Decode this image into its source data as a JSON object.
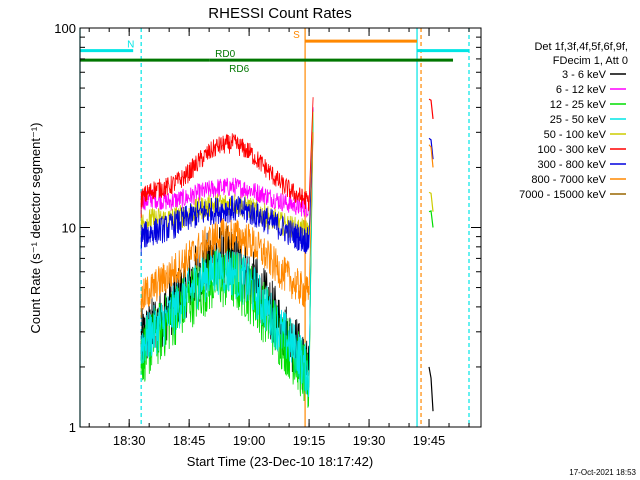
{
  "chart_data": {
    "type": "line",
    "title": "RHESSI Count Rates",
    "xlabel": "Start Time (23-Dec-10 18:17:42)",
    "ylabel": "Count Rate (s⁻¹ detector segment⁻¹)",
    "yscale": "log",
    "ylim": [
      1,
      100
    ],
    "xlim": [
      "18:17:42",
      "19:58:00"
    ],
    "x_ticks": [
      "18:30",
      "18:45",
      "19:00",
      "19:15",
      "19:30",
      "19:45"
    ],
    "y_ticks": [
      "1",
      "10",
      "100"
    ],
    "grid": false,
    "legend_position": "top-right",
    "legend_header": [
      "Det 1f,3f,4f,5f,6f,9f,",
      "FDecim 1, Att 0"
    ],
    "series": [
      {
        "name": "3 - 6 keV",
        "color": "#000000",
        "x": [
          "18:33",
          "18:36",
          "18:40",
          "18:44",
          "18:48",
          "18:52",
          "18:56",
          "19:00",
          "19:04",
          "19:08",
          "19:12",
          "19:15",
          "19:16"
        ],
        "values": [
          2.7,
          3.2,
          4.0,
          5.0,
          6.2,
          7.3,
          7.0,
          5.7,
          4.3,
          3.2,
          2.5,
          1.8,
          40
        ]
      },
      {
        "name": "6 - 12 keV",
        "color": "#ff00ff",
        "x": [
          "18:33",
          "18:36",
          "18:40",
          "18:44",
          "18:48",
          "18:52",
          "18:56",
          "19:00",
          "19:04",
          "19:08",
          "19:12",
          "19:15",
          "19:16"
        ],
        "values": [
          13.5,
          14.0,
          13.5,
          14.0,
          15.0,
          15.8,
          16.0,
          15.5,
          14.5,
          13.5,
          12.8,
          12.5,
          40
        ]
      },
      {
        "name": "12 - 25 keV",
        "color": "#00dd00",
        "x": [
          "18:33",
          "18:36",
          "18:40",
          "18:44",
          "18:48",
          "18:52",
          "18:56",
          "19:00",
          "19:04",
          "19:08",
          "19:12",
          "19:15",
          "19:16"
        ],
        "values": [
          2.3,
          2.7,
          3.4,
          4.2,
          5.0,
          5.6,
          5.5,
          4.8,
          3.7,
          2.8,
          2.2,
          1.6,
          35
        ]
      },
      {
        "name": "25 - 50 keV",
        "color": "#00e5e5",
        "x": [
          "18:33",
          "18:36",
          "18:40",
          "18:44",
          "18:48",
          "18:52",
          "18:56",
          "19:00",
          "19:04",
          "19:08",
          "19:12",
          "19:15",
          "19:16"
        ],
        "values": [
          2.6,
          3.0,
          3.6,
          4.5,
          5.5,
          6.2,
          6.0,
          5.2,
          4.0,
          3.0,
          2.4,
          1.8,
          38
        ]
      },
      {
        "name": "50 - 100 keV",
        "color": "#cccc00",
        "x": [
          "18:33",
          "18:36",
          "18:40",
          "18:44",
          "18:48",
          "18:52",
          "18:56",
          "19:00",
          "19:04",
          "19:08",
          "19:12",
          "19:15",
          "19:16"
        ],
        "values": [
          10.5,
          11.0,
          11.0,
          11.5,
          12.5,
          13.0,
          13.2,
          12.5,
          11.5,
          10.5,
          9.8,
          9.5,
          38
        ]
      },
      {
        "name": "100 - 300 keV",
        "color": "#ff0000",
        "x": [
          "18:33",
          "18:36",
          "18:40",
          "18:44",
          "18:48",
          "18:52",
          "18:56",
          "19:00",
          "19:04",
          "19:08",
          "19:12",
          "19:15",
          "19:16"
        ],
        "values": [
          14.0,
          15.5,
          16.0,
          18.0,
          22.0,
          25.5,
          26.5,
          24.0,
          20.0,
          16.5,
          14.5,
          13.5,
          45
        ]
      },
      {
        "name": "300 - 800 keV",
        "color": "#0000dd",
        "x": [
          "18:33",
          "18:36",
          "18:40",
          "18:44",
          "18:48",
          "18:52",
          "18:56",
          "19:00",
          "19:04",
          "19:08",
          "19:12",
          "19:15",
          "19:16"
        ],
        "values": [
          9.0,
          9.5,
          10.0,
          11.0,
          11.8,
          12.2,
          12.4,
          12.0,
          11.0,
          10.0,
          9.0,
          8.5,
          30
        ]
      },
      {
        "name": "800 - 7000 keV",
        "color": "#ff8800",
        "x": [
          "18:33",
          "18:36",
          "18:40",
          "18:44",
          "18:48",
          "18:52",
          "18:56",
          "19:00",
          "19:04",
          "19:08",
          "19:12",
          "19:15",
          "19:16"
        ],
        "values": [
          4.4,
          5.0,
          5.8,
          6.8,
          8.0,
          9.0,
          9.2,
          8.6,
          7.3,
          6.0,
          5.1,
          4.6,
          30
        ]
      },
      {
        "name": "7000 - 15000 keV",
        "color": "#996600",
        "x": [
          "18:33",
          "19:16"
        ],
        "values": [
          1.0,
          1.0
        ]
      }
    ],
    "annotations": [
      {
        "label": "N",
        "color": "#00e5e5",
        "x_start": "18:17:42",
        "x_end": "18:31",
        "y_value": 77
      },
      {
        "label": "",
        "color": "#00e5e5",
        "x_start": "19:42",
        "x_end": "19:55",
        "y_value": 77
      },
      {
        "label": "S",
        "color": "#ff8800",
        "x_start": "19:14",
        "x_end": "19:42",
        "y_value": 86
      },
      {
        "label": "RD0",
        "color": "#007700",
        "x_start": "18:17:42",
        "x_end": "18:50",
        "y_value": 69
      },
      {
        "label": "RD6",
        "color": "#007700",
        "x_start": "18:50",
        "x_end": "19:51",
        "y_value": 69
      }
    ],
    "vertical_markers": [
      {
        "x": "18:17:42",
        "color": "#00e5e5",
        "style": "solid"
      },
      {
        "x": "18:33",
        "color": "#00e5e5",
        "style": "dashed"
      },
      {
        "x": "19:14",
        "color": "#ff8800",
        "style": "solid"
      },
      {
        "x": "19:42",
        "color": "#00e5e5",
        "style": "solid"
      },
      {
        "x": "19:43",
        "color": "#ff8800",
        "style": "dashed"
      },
      {
        "x": "19:55",
        "color": "#00e5e5",
        "style": "dashed"
      }
    ],
    "late_segment": {
      "x": [
        "19:45",
        "19:46"
      ],
      "series_values": {
        "100 - 300 keV": [
          44,
          35
        ],
        "300 - 800 keV": [
          28,
          22
        ],
        "800 - 7000 keV": [
          26,
          20
        ],
        "50 - 100 keV": [
          15,
          12
        ],
        "12 - 25 keV": [
          12,
          10
        ],
        "3 - 6 keV": [
          2,
          1.2
        ]
      }
    }
  },
  "timestamp": "17-Oct-2021 18:53"
}
